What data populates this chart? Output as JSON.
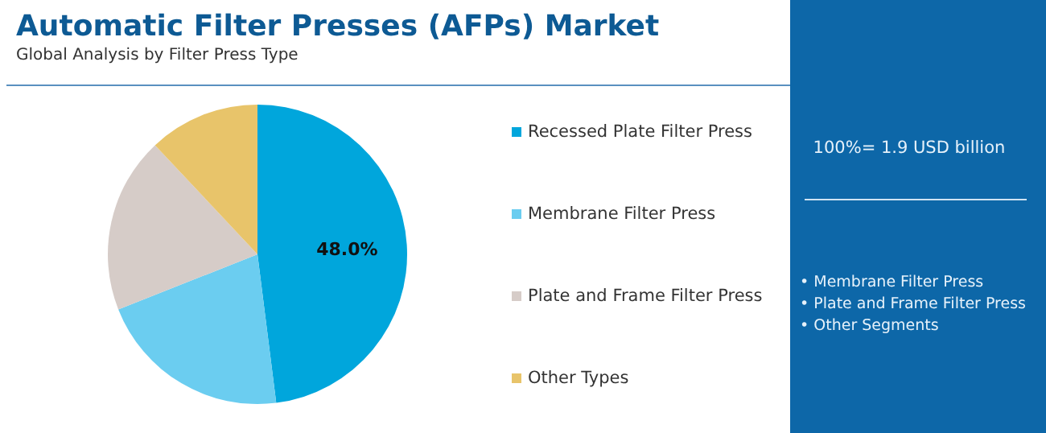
{
  "chart_data": {
    "type": "pie",
    "title": "Automatic Filter Presses (AFPs) Market",
    "subtitle": "Global Analysis by Filter Press Type",
    "categories": [
      "Recessed Plate Filter Press",
      "Membrane Filter Press",
      "Plate and Frame Filter Press",
      "Other Types"
    ],
    "values": [
      48,
      21,
      19,
      12
    ],
    "colors": [
      "#00a6dc",
      "#6bcdf0",
      "#d6ccc8",
      "#e8c46a"
    ],
    "value_labels": [
      "48.0%",
      null,
      null,
      null
    ],
    "legend": "right",
    "annotations": [
      "100%= 1.9 USD billion",
      "• Membrane Filter Press",
      "• Plate and Frame Filter Press",
      "• Other Segments"
    ]
  }
}
